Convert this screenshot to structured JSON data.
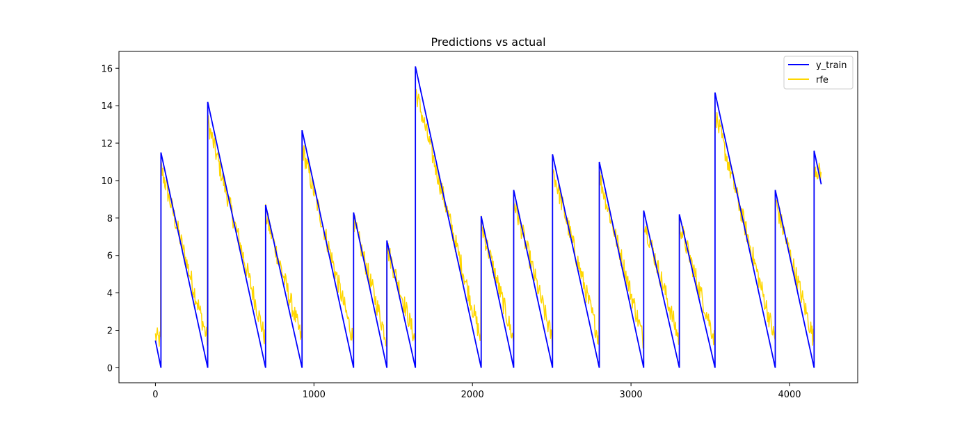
{
  "chart_data": {
    "type": "line",
    "title": "Predictions vs actual",
    "xlabel": "",
    "ylabel": "",
    "xlim": [
      -230,
      4430
    ],
    "ylim": [
      -0.8,
      16.9
    ],
    "xticks": [
      0,
      1000,
      2000,
      3000,
      4000
    ],
    "yticks": [
      0,
      2,
      4,
      6,
      8,
      10,
      12,
      14,
      16
    ],
    "grid": false,
    "legend_position": "top-right",
    "series": [
      {
        "name": "y_train",
        "color": "#0000ff",
        "cycles": [
          {
            "start": 0,
            "end": 35,
            "peak": 1.45
          },
          {
            "start": 35,
            "end": 330,
            "peak": 11.5
          },
          {
            "start": 330,
            "end": 695,
            "peak": 14.2
          },
          {
            "start": 695,
            "end": 925,
            "peak": 8.7
          },
          {
            "start": 925,
            "end": 1250,
            "peak": 12.7
          },
          {
            "start": 1250,
            "end": 1460,
            "peak": 8.3
          },
          {
            "start": 1460,
            "end": 1640,
            "peak": 6.8
          },
          {
            "start": 1640,
            "end": 2055,
            "peak": 16.1
          },
          {
            "start": 2055,
            "end": 2260,
            "peak": 8.1
          },
          {
            "start": 2260,
            "end": 2505,
            "peak": 9.5
          },
          {
            "start": 2505,
            "end": 2800,
            "peak": 11.4
          },
          {
            "start": 2800,
            "end": 3080,
            "peak": 11.0
          },
          {
            "start": 3080,
            "end": 3305,
            "peak": 8.4
          },
          {
            "start": 3305,
            "end": 3530,
            "peak": 8.2
          },
          {
            "start": 3530,
            "end": 3910,
            "peak": 14.7
          },
          {
            "start": 3910,
            "end": 4155,
            "peak": 9.5
          },
          {
            "start": 4155,
            "end": 4200,
            "peak": 11.6,
            "final": 9.8
          }
        ]
      },
      {
        "name": "rfe",
        "color": "#ffd700",
        "noise_amplitude": 0.55,
        "offset": 0.9
      }
    ]
  }
}
